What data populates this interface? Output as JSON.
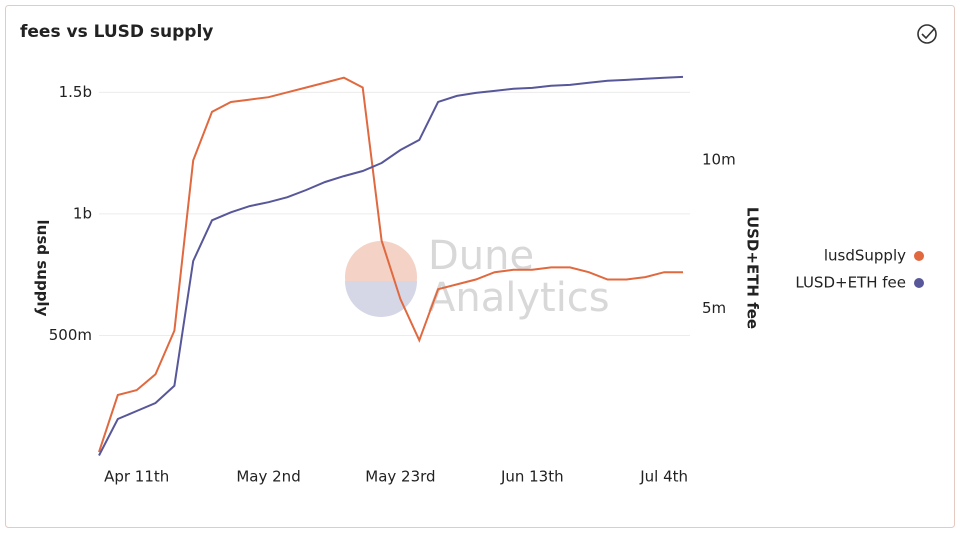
{
  "chart_data": {
    "type": "line",
    "title": "fees vs LUSD supply",
    "y_label": "lusd supply",
    "y2_label": "LUSD+ETH fee",
    "watermark": [
      "Dune",
      "Analytics"
    ],
    "x": [
      "Apr 5",
      "Apr 8",
      "Apr 11",
      "Apr 14",
      "Apr 17",
      "Apr 20",
      "Apr 23",
      "Apr 26",
      "Apr 29",
      "May 2",
      "May 5",
      "May 8",
      "May 11",
      "May 14",
      "May 17",
      "May 20",
      "May 23",
      "May 26",
      "May 29",
      "Jun 1",
      "Jun 4",
      "Jun 7",
      "Jun 10",
      "Jun 13",
      "Jun 16",
      "Jun 19",
      "Jun 22",
      "Jun 25",
      "Jun 28",
      "Jul 1",
      "Jul 4",
      "Jul 7"
    ],
    "xticks": [
      {
        "value": "Apr 11",
        "label": "Apr 11th"
      },
      {
        "value": "May 2",
        "label": "May 2nd"
      },
      {
        "value": "May 23",
        "label": "May 23rd"
      },
      {
        "value": "Jun 13",
        "label": "Jun 13th"
      },
      {
        "value": "Jul 4",
        "label": "Jul 4th"
      }
    ],
    "ylim": [
      0,
      1600000000
    ],
    "yticks": [
      {
        "value": 500000000,
        "label": "500m"
      },
      {
        "value": 1000000000,
        "label": "1b"
      },
      {
        "value": 1500000000,
        "label": "1.5b"
      }
    ],
    "y2lim": [
      0,
      13100000
    ],
    "y2ticks": [
      {
        "value": 5000000,
        "label": "5m"
      },
      {
        "value": 10000000,
        "label": "10m"
      }
    ],
    "grid": true,
    "legend": "right",
    "series": [
      {
        "name": "lusdSupply",
        "color": "#e0693f",
        "values": [
          20000000,
          255000000,
          275000000,
          340000000,
          520000000,
          1220000000,
          1420000000,
          1460000000,
          1470000000,
          1480000000,
          1500000000,
          1520000000,
          1540000000,
          1560000000,
          1520000000,
          890000000,
          650000000,
          480000000,
          690000000,
          710000000,
          730000000,
          760000000,
          770000000,
          770000000,
          780000000,
          780000000,
          760000000,
          730000000,
          730000000,
          740000000,
          760000000,
          760000000
        ]
      },
      {
        "name": "LUSD+ETH fee",
        "color": "#57579a",
        "axis": "y2",
        "values": [
          50000,
          1280000,
          1550000,
          1820000,
          2400000,
          6600000,
          7970000,
          8240000,
          8450000,
          8580000,
          8750000,
          8990000,
          9260000,
          9460000,
          9630000,
          9900000,
          10340000,
          10680000,
          11960000,
          12160000,
          12260000,
          12330000,
          12400000,
          12430000,
          12500000,
          12530000,
          12600000,
          12670000,
          12700000,
          12740000,
          12770000,
          12800000
        ]
      }
    ]
  }
}
